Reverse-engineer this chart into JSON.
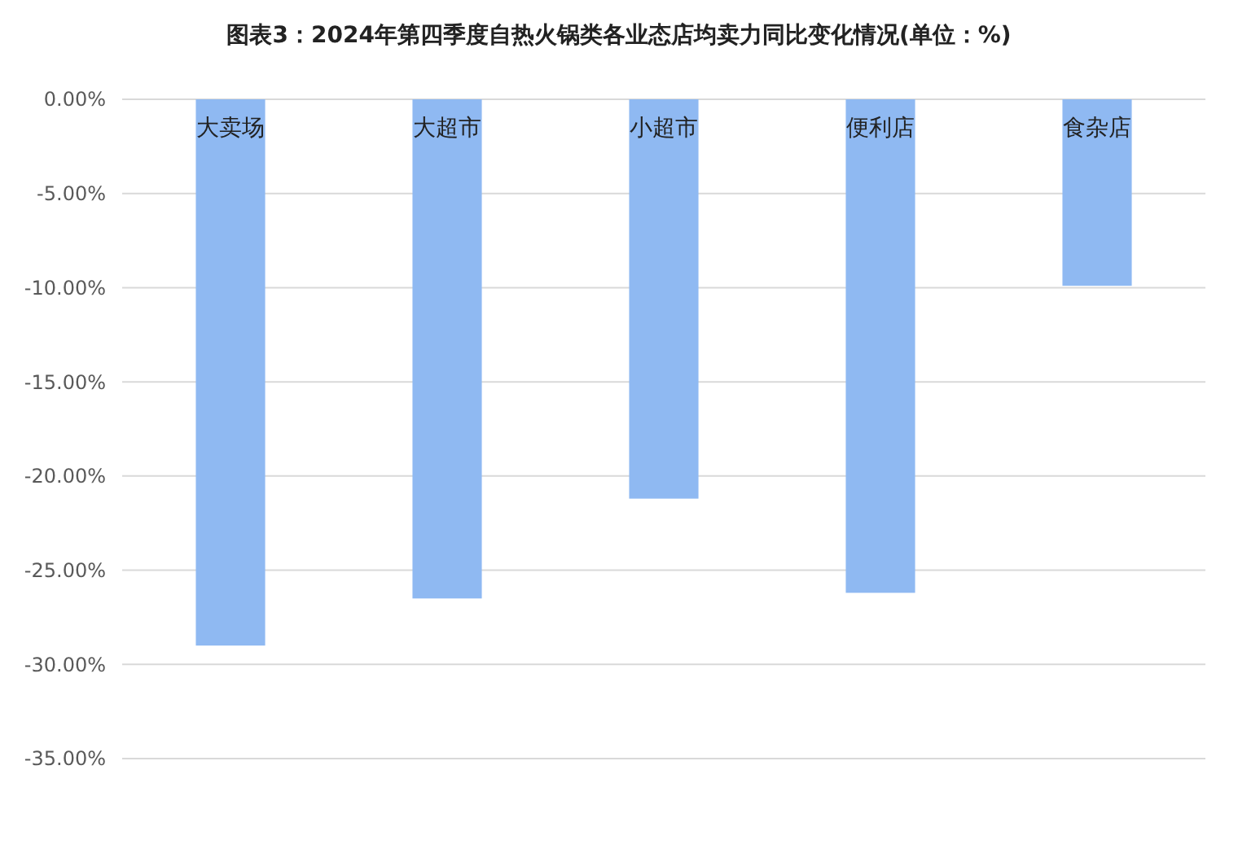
{
  "chart_data": {
    "type": "bar",
    "title": "图表3：2024年第四季度自热火锅类各业态店均卖力同比变化情况(单位：%)",
    "categories": [
      "大卖场",
      "大超市",
      "小超市",
      "便利店",
      "食杂店"
    ],
    "values": [
      -29.0,
      -26.5,
      -21.2,
      -26.2,
      -9.9
    ],
    "color": "#8fb9f2",
    "ylim": [
      -35,
      0
    ],
    "yticks": [
      {
        "value": 0,
        "label": "0.00%"
      },
      {
        "value": -5,
        "label": "-5.00%"
      },
      {
        "value": -10,
        "label": "-10.00%"
      },
      {
        "value": -15,
        "label": "-15.00%"
      },
      {
        "value": -20,
        "label": "-20.00%"
      },
      {
        "value": -25,
        "label": "-25.00%"
      },
      {
        "value": -30,
        "label": "-30.00%"
      },
      {
        "value": -35,
        "label": "-35.00%"
      }
    ],
    "grid": "y"
  }
}
